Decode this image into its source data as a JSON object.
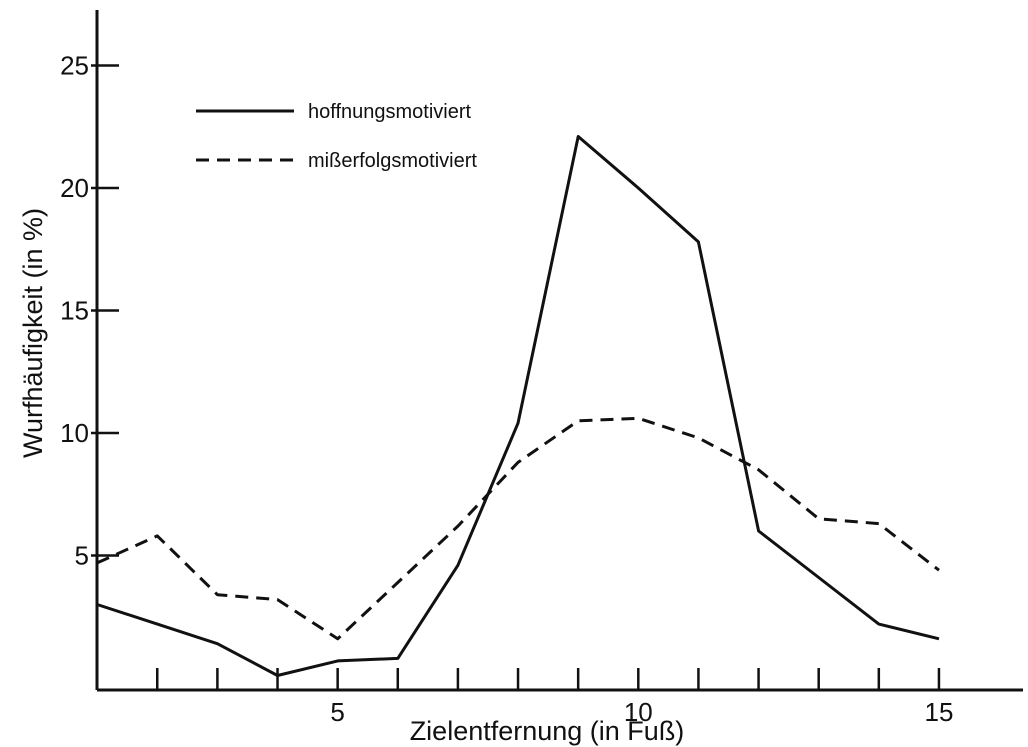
{
  "chart_data": {
    "type": "line",
    "xlabel": "Zielentfernung (in Fuß)",
    "ylabel": "Wurfhäufigkeit (in %)",
    "xlim": [
      0,
      15.5
    ],
    "ylim": [
      0,
      27
    ],
    "x_ticks_major": [
      5,
      10,
      15
    ],
    "x_ticks_minor": [
      1,
      2,
      3,
      4,
      5,
      6,
      7,
      8,
      9,
      10,
      11,
      12,
      13,
      14,
      15
    ],
    "y_ticks": [
      5,
      10,
      15,
      20,
      25
    ],
    "grid": false,
    "legend_position": "top-left",
    "series": [
      {
        "name": "hoffnungsmotiviert",
        "style": "solid",
        "x": [
          1,
          2,
          3,
          4,
          5,
          6,
          7,
          8,
          9,
          10,
          11,
          12,
          13,
          14,
          15
        ],
        "y": [
          3.0,
          2.2,
          1.4,
          0.1,
          0.7,
          0.8,
          4.6,
          10.4,
          22.1,
          20.0,
          17.8,
          6.0,
          4.1,
          2.2,
          1.6
        ]
      },
      {
        "name": "mißerfolgsmotiviert",
        "style": "dashed",
        "x": [
          1,
          2,
          3,
          4,
          5,
          6,
          7,
          8,
          9,
          10,
          11,
          12,
          13,
          14,
          15
        ],
        "y": [
          4.7,
          5.8,
          3.4,
          3.2,
          1.6,
          3.9,
          6.2,
          8.8,
          10.5,
          10.6,
          9.8,
          8.5,
          6.5,
          6.3,
          4.4
        ]
      }
    ]
  }
}
